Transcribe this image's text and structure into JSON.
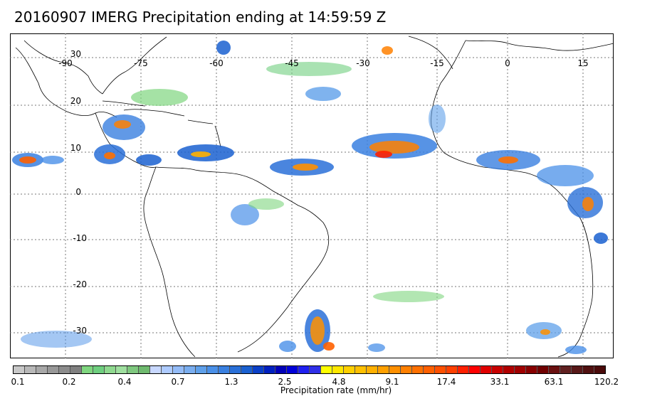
{
  "title": "20160907 IMERG Precipitation ending at 14:59:59 Z",
  "map": {
    "lon_labels": [
      "-90",
      "-75",
      "-60",
      "-45",
      "-30",
      "-15",
      "0",
      "15"
    ],
    "lat_labels": [
      "30",
      "20",
      "10",
      "0",
      "-10",
      "-20",
      "-30"
    ],
    "lon_range": [
      -98,
      22
    ],
    "lat_range": [
      -35,
      35
    ],
    "gridlines": true,
    "land_color": "#ffffff",
    "coast_color": "#000000"
  },
  "colorbar": {
    "title": "Precipitation rate (mm/hr)",
    "ticks": [
      "0.1",
      "0.2",
      "0.4",
      "0.7",
      "1.3",
      "2.5",
      "4.8",
      "9.1",
      "17.4",
      "33.1",
      "63.1",
      "120.2"
    ],
    "colors": [
      "#c8c8c8",
      "#b8b8b8",
      "#a8a8a8",
      "#989898",
      "#8c8c8c",
      "#808080",
      "#7fd67f",
      "#6fcf7f",
      "#8fd98f",
      "#9fdf9f",
      "#7fc87f",
      "#6fba6f",
      "#c8d8ff",
      "#aecbff",
      "#94bcf8",
      "#7aaef0",
      "#5fa0ea",
      "#4a90e8",
      "#3a80e0",
      "#2a70d8",
      "#1a60d0",
      "#0a40c8",
      "#0020c0",
      "#0000b8",
      "#0000d8",
      "#2020f0",
      "#3030e8",
      "#ffff00",
      "#ffe800",
      "#ffd000",
      "#ffc000",
      "#ffb000",
      "#ffa000",
      "#ff9000",
      "#ff8000",
      "#ff7000",
      "#ff6000",
      "#ff5000",
      "#ff4000",
      "#ff2000",
      "#ff0000",
      "#e00000",
      "#c80000",
      "#b00000",
      "#a00000",
      "#880000",
      "#700000",
      "#6a1010",
      "#602020",
      "#581818",
      "#501010",
      "#4a0a0a"
    ]
  }
}
